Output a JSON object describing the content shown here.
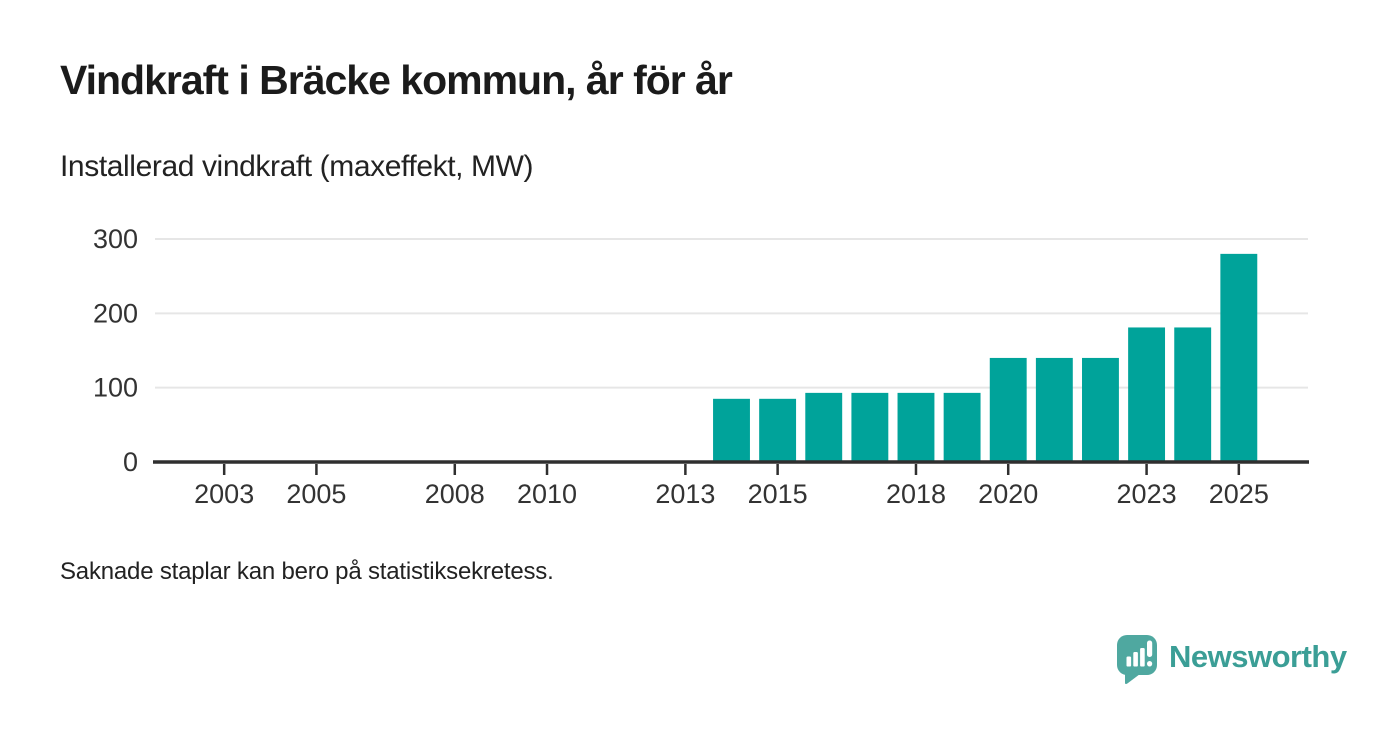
{
  "chart_data": {
    "type": "bar",
    "title": "Vindkraft i Bräcke kommun, år för år",
    "subtitle": "Installerad vindkraft (maxeffekt, MW)",
    "note": "Saknade staplar kan bero på statistiksekretess.",
    "unit": "MW",
    "x": [
      2014,
      2015,
      2016,
      2017,
      2018,
      2019,
      2020,
      2021,
      2022,
      2023,
      2024,
      2025
    ],
    "values": [
      85,
      85,
      93,
      93,
      93,
      93,
      140,
      140,
      140,
      181,
      181,
      280
    ],
    "xlim": [
      2002,
      2026
    ],
    "ylim": [
      0,
      300
    ],
    "x_ticks": [
      2003,
      2005,
      2008,
      2010,
      2013,
      2015,
      2018,
      2020,
      2023,
      2025
    ],
    "y_ticks": [
      0,
      100,
      200,
      300
    ],
    "grid": "horizontal",
    "legend": "none",
    "bar_color": "#00a39a",
    "axis_color": "#2f2f2f",
    "grid_color": "#e6e6e6",
    "tick_label_color": "#333333"
  },
  "logo": {
    "brand": "Newsworthy",
    "icon": "newsworthy-speech-bubble-chart-icon",
    "bubble_color": "#4fa8a0",
    "glyph_color": "#ffffff",
    "text_color": "#3b9e96"
  },
  "colors": {
    "background": "#ffffff",
    "title_text": "#1b1b1b",
    "body_text": "#222222"
  }
}
